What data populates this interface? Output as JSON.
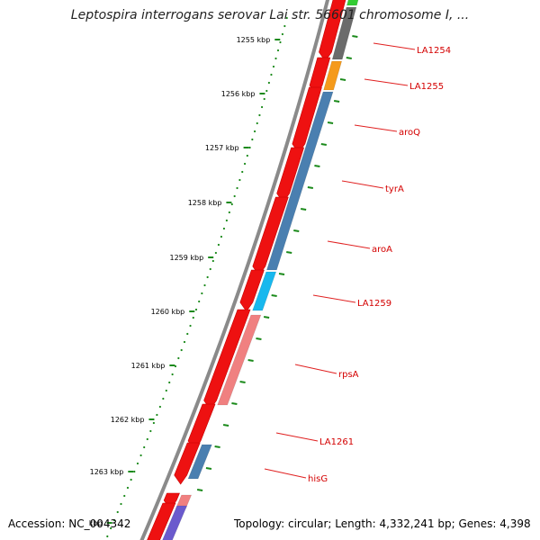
{
  "title": "Leptospira interrogans serovar Lai str. 56601 chromosome I, ...",
  "footer": {
    "accession": "Accession: NC_004342",
    "stats": "Topology: circular; Length: 4,332,241 bp; Genes: 4,398"
  },
  "scale": {
    "unit": "kbp",
    "ticks": [
      "1255 kbp",
      "1256 kbp",
      "1257 kbp",
      "1258 kbp",
      "1259 kbp",
      "1260 kbp",
      "1261 kbp",
      "1262 kbp",
      "1263 kbp",
      "kbp"
    ]
  },
  "gene_labels": [
    "LA1254",
    "LA1255",
    "aroQ",
    "tyrA",
    "aroA",
    "LA1259",
    "rpsA",
    "LA1261",
    "hisG"
  ],
  "colors": {
    "backbone": "#8a8a8a",
    "tick_green": "#1b8a1b",
    "label_red": "#d40000",
    "leader_red": "#e02020",
    "reverse_strand_red": "#ee1111",
    "gray_feature": "#6b6b6b",
    "orange_feature": "#f59a1b",
    "steelblue_feature": "#4a7fb0",
    "cyan_feature": "#18b8ee",
    "salmon_feature": "#f08080",
    "purple_feature": "#6a5acd",
    "green_feature": "#33cc33"
  }
}
